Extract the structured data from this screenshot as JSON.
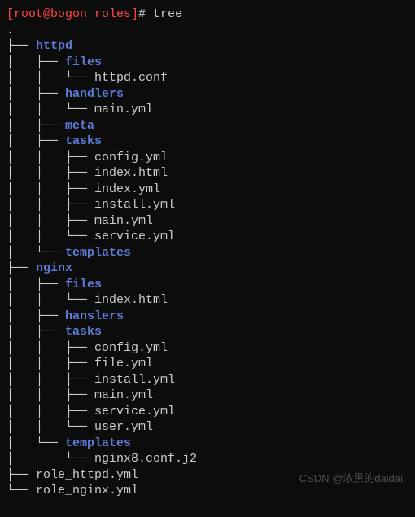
{
  "prompt": {
    "user_host": "[root@bogon roles]",
    "symbol": "# ",
    "command": "tree"
  },
  "colors": {
    "bg": "#0c0c0c",
    "text": "#cccccc",
    "dir": "#5b7bd6",
    "prompt": "#ff4444"
  },
  "tree": {
    "root": ".",
    "lines": [
      {
        "prefix": "├── ",
        "name": "httpd",
        "type": "dir"
      },
      {
        "prefix": "│   ├── ",
        "name": "files",
        "type": "dir"
      },
      {
        "prefix": "│   │   └── ",
        "name": "httpd.conf",
        "type": "file"
      },
      {
        "prefix": "│   ├── ",
        "name": "handlers",
        "type": "dir"
      },
      {
        "prefix": "│   │   └── ",
        "name": "main.yml",
        "type": "file"
      },
      {
        "prefix": "│   ├── ",
        "name": "meta",
        "type": "dir"
      },
      {
        "prefix": "│   ├── ",
        "name": "tasks",
        "type": "dir"
      },
      {
        "prefix": "│   │   ├── ",
        "name": "config.yml",
        "type": "file"
      },
      {
        "prefix": "│   │   ├── ",
        "name": "index.html",
        "type": "file"
      },
      {
        "prefix": "│   │   ├── ",
        "name": "index.yml",
        "type": "file"
      },
      {
        "prefix": "│   │   ├── ",
        "name": "install.yml",
        "type": "file"
      },
      {
        "prefix": "│   │   ├── ",
        "name": "main.yml",
        "type": "file"
      },
      {
        "prefix": "│   │   └── ",
        "name": "service.yml",
        "type": "file"
      },
      {
        "prefix": "│   └── ",
        "name": "templates",
        "type": "dir"
      },
      {
        "prefix": "├── ",
        "name": "nginx",
        "type": "dir"
      },
      {
        "prefix": "│   ├── ",
        "name": "files",
        "type": "dir"
      },
      {
        "prefix": "│   │   └── ",
        "name": "index.html",
        "type": "file"
      },
      {
        "prefix": "│   ├── ",
        "name": "hanslers",
        "type": "dir"
      },
      {
        "prefix": "│   ├── ",
        "name": "tasks",
        "type": "dir"
      },
      {
        "prefix": "│   │   ├── ",
        "name": "config.yml",
        "type": "file"
      },
      {
        "prefix": "│   │   ├── ",
        "name": "file.yml",
        "type": "file"
      },
      {
        "prefix": "│   │   ├── ",
        "name": "install.yml",
        "type": "file"
      },
      {
        "prefix": "│   │   ├── ",
        "name": "main.yml",
        "type": "file"
      },
      {
        "prefix": "│   │   ├── ",
        "name": "service.yml",
        "type": "file"
      },
      {
        "prefix": "│   │   └── ",
        "name": "user.yml",
        "type": "file"
      },
      {
        "prefix": "│   └── ",
        "name": "templates",
        "type": "dir"
      },
      {
        "prefix": "│       └── ",
        "name": "nginx8.conf.j2",
        "type": "file"
      },
      {
        "prefix": "├── ",
        "name": "role_httpd.yml",
        "type": "file"
      },
      {
        "prefix": "└── ",
        "name": "role_nginx.yml",
        "type": "file"
      }
    ]
  },
  "watermark": "CSDN @浓黑的daidai"
}
